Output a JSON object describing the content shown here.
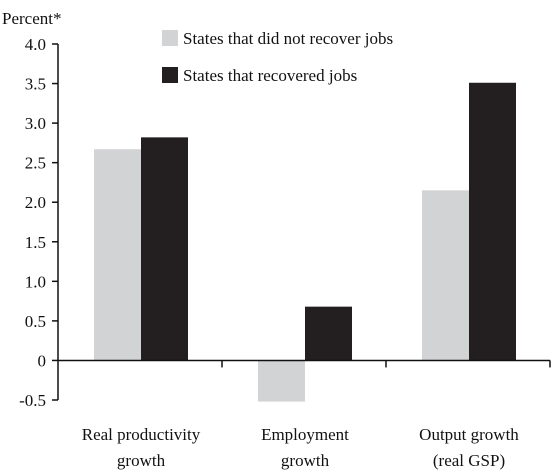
{
  "chart_data": {
    "type": "bar",
    "ylabel": "Percent*",
    "ylim": [
      -0.5,
      4.0
    ],
    "yticks": [
      "4.0",
      "3.5",
      "3.0",
      "2.5",
      "2.0",
      "1.5",
      "1.0",
      "0.5",
      "0",
      "-0.5"
    ],
    "ytick_values": [
      4.0,
      3.5,
      3.0,
      2.5,
      2.0,
      1.5,
      1.0,
      0.5,
      0,
      -0.5
    ],
    "categories": [
      [
        "Real productivity",
        "growth"
      ],
      [
        "Employment",
        "growth"
      ],
      [
        "Output growth",
        "(real GSP)"
      ]
    ],
    "series": [
      {
        "name": "States that did not recover jobs",
        "color": "#d2d3d5",
        "values": [
          2.67,
          -0.52,
          2.15
        ]
      },
      {
        "name": "States that recovered jobs",
        "color": "#231f20",
        "values": [
          2.82,
          0.68,
          3.51
        ]
      }
    ],
    "legend_position": "top-right",
    "grid": false
  }
}
